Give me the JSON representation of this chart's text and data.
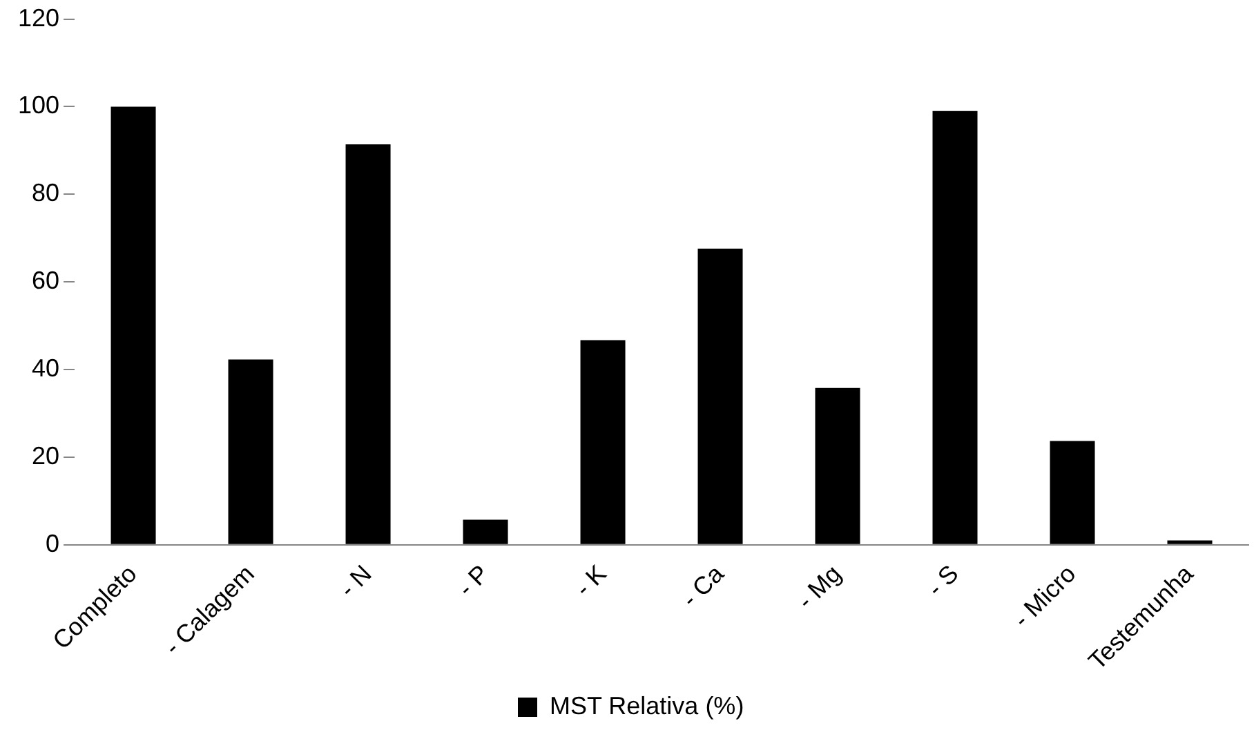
{
  "chart_data": {
    "type": "bar",
    "categories": [
      "Completo",
      "- Calagem",
      "- N",
      "- P",
      "- K",
      "- Ca",
      "- Mg",
      "- S",
      "- Micro",
      "Testemunha"
    ],
    "series": [
      {
        "name": "MST Relativa (%)",
        "color": "#000000",
        "values": [
          100,
          42.3,
          91.4,
          5.7,
          46.7,
          67.6,
          35.8,
          99,
          23.7,
          1
        ]
      }
    ],
    "ylim": [
      0,
      120
    ],
    "yticks": [
      0,
      20,
      40,
      60,
      80,
      100,
      120
    ],
    "grid": false,
    "legend": "bottom"
  }
}
